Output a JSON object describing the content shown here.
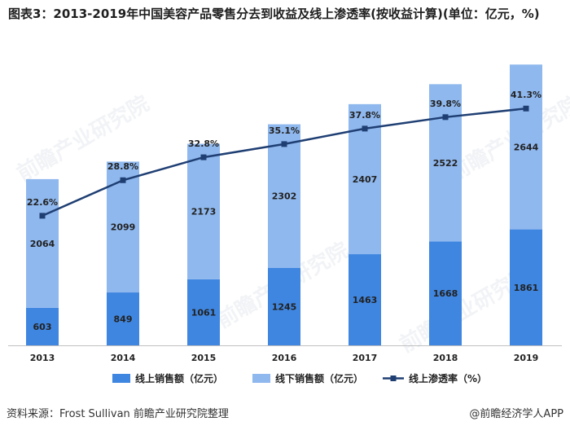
{
  "title": "图表3：2013-2019年中国美容产品零售分去到收益及线上渗透率(按收益计算)(单位：亿元，%)",
  "footer": {
    "source": "资料来源：Frost Sullivan 前瞻产业研究院整理",
    "brand": "@前瞻经济学人APP"
  },
  "watermark_text": "前瞻产业研究院",
  "colors": {
    "online": "#3f86e0",
    "offline": "#8fb8ee",
    "rate_line": "#1f3f73",
    "axis": "#bfbfbf"
  },
  "chart_data": {
    "type": "bar",
    "stacked": true,
    "categories": [
      "2013",
      "2014",
      "2015",
      "2016",
      "2017",
      "2018",
      "2019"
    ],
    "series": [
      {
        "name": "线上销售额（亿元）",
        "type": "bar",
        "values": [
          603,
          849,
          1061,
          1245,
          1463,
          1668,
          1861
        ]
      },
      {
        "name": "线下销售额（亿元）",
        "type": "bar",
        "values": [
          2064,
          2099,
          2173,
          2302,
          2407,
          2522,
          2644
        ]
      },
      {
        "name": "线上渗透率（%）",
        "type": "line",
        "values": [
          22.6,
          28.8,
          32.8,
          35.1,
          37.8,
          39.8,
          41.3
        ],
        "labels": [
          "22.6%",
          "28.8%",
          "32.8%",
          "35.1%",
          "37.8%",
          "39.8%",
          "41.3%"
        ]
      }
    ],
    "ylim": [
      0,
      4600
    ],
    "rate_ylim": [
      0,
      50
    ],
    "grid": false,
    "legend": "bottom"
  }
}
